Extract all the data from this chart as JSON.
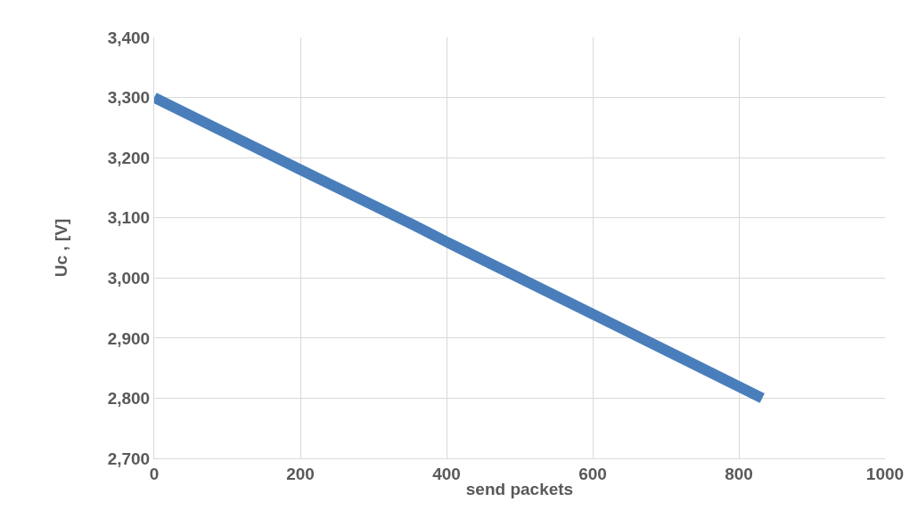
{
  "chart_data": {
    "type": "line",
    "xlabel": "send packets",
    "ylabel": "Uc , [V]",
    "x": [
      0,
      200,
      355,
      400,
      600,
      832
    ],
    "series": [
      {
        "color": "#4a7ebb",
        "values": [
          3300,
          3180,
          3088,
          3060,
          2940,
          2800
        ]
      }
    ],
    "xlim": [
      0,
      1000
    ],
    "xticks": [
      0,
      200,
      400,
      600,
      800,
      1000
    ],
    "ylim": [
      2700,
      3400
    ],
    "yticks": [
      {
        "value": 2700,
        "label": "2,700"
      },
      {
        "value": 2800,
        "label": "2,800"
      },
      {
        "value": 2900,
        "label": "2,900"
      },
      {
        "value": 3000,
        "label": "3,000"
      },
      {
        "value": 3100,
        "label": "3,100"
      },
      {
        "value": 3200,
        "label": "3,200"
      },
      {
        "value": 3300,
        "label": "3,300"
      },
      {
        "value": 3400,
        "label": "3,400"
      }
    ],
    "grid": true,
    "line_style": "solid"
  }
}
